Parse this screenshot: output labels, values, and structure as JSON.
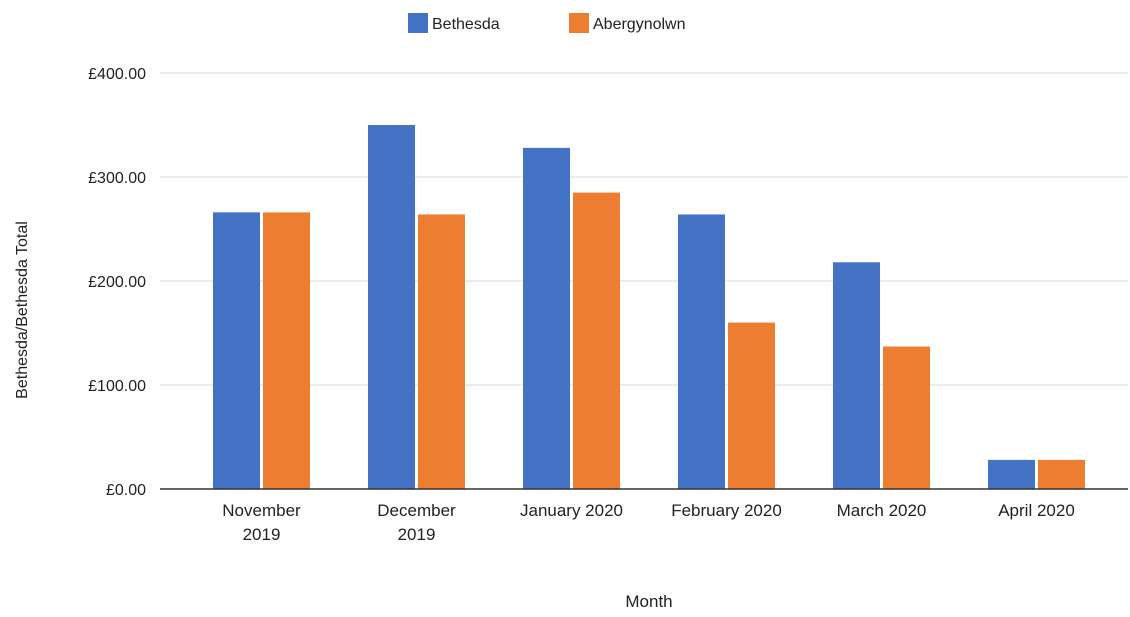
{
  "chart_data": {
    "type": "bar",
    "title": "",
    "xlabel": "Month",
    "ylabel": "Bethesda/Bethesda Total",
    "categories": [
      [
        "November",
        "2019"
      ],
      [
        "December",
        "2019"
      ],
      [
        "January 2020"
      ],
      [
        "February 2020"
      ],
      [
        "March 2020"
      ],
      [
        "April 2020"
      ]
    ],
    "series": [
      {
        "name": "Bethesda",
        "color": "#4472C4",
        "values": [
          266,
          350,
          328,
          264,
          218,
          28
        ]
      },
      {
        "name": "Abergynolwn",
        "color": "#ED7D31",
        "values": [
          266,
          264,
          285,
          160,
          137,
          28
        ]
      }
    ],
    "ylim": [
      0,
      400
    ],
    "yticks": [
      0,
      100,
      200,
      300,
      400
    ],
    "ytick_labels": [
      "£0.00",
      "£100.00",
      "£200.00",
      "£300.00",
      "£400.00"
    ],
    "grid": true,
    "legend_position": "top-center"
  }
}
